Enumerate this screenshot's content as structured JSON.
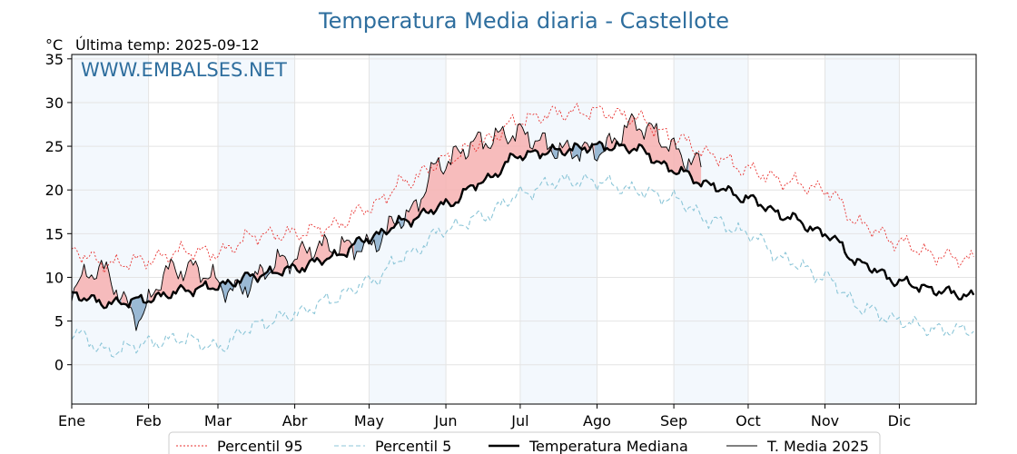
{
  "chart_data": {
    "type": "line",
    "title": "Temperatura Media diaria - Castellote",
    "y_unit": "°C",
    "last_temp_label": "Última temp: 2025-09-12",
    "watermark": "WWW.EMBALSES.NET",
    "ylim": [
      -4.5,
      35.5
    ],
    "yticks": [
      0,
      5,
      10,
      15,
      20,
      25,
      30,
      35
    ],
    "month_labels": [
      "Ene",
      "Feb",
      "Mar",
      "Abr",
      "May",
      "Jun",
      "Jul",
      "Ago",
      "Sep",
      "Oct",
      "Nov",
      "Dic"
    ],
    "month_start_days": [
      1,
      32,
      60,
      91,
      121,
      152,
      182,
      213,
      244,
      274,
      305,
      335
    ],
    "x_range_days": [
      1,
      366
    ],
    "grid": true,
    "legend_position": "bottom",
    "anchor_days": [
      1,
      16,
      32,
      46,
      60,
      75,
      91,
      106,
      121,
      136,
      152,
      167,
      182,
      197,
      213,
      228,
      244,
      259,
      274,
      289,
      305,
      320,
      335,
      350,
      365
    ],
    "series": [
      {
        "name": "Percentil 95",
        "key": "p95",
        "color": "#e8312f",
        "style": "dotted",
        "anchors": [
          13.0,
          11.5,
          12.0,
          13.0,
          12.8,
          14.8,
          15.0,
          15.8,
          18.0,
          21.0,
          23.5,
          25.5,
          28.0,
          28.8,
          29.0,
          28.3,
          26.0,
          24.0,
          22.3,
          21.0,
          20.0,
          16.0,
          14.0,
          12.5,
          12.0
        ],
        "noise_amp": 1.2
      },
      {
        "name": "Percentil 5",
        "key": "p5",
        "color": "#8cc6d8",
        "style": "dashed",
        "anchors": [
          3.8,
          1.5,
          2.5,
          3.0,
          2.0,
          4.5,
          5.8,
          7.5,
          9.5,
          12.5,
          15.5,
          17.0,
          19.5,
          21.0,
          21.0,
          20.0,
          19.0,
          16.5,
          15.0,
          12.0,
          10.0,
          6.5,
          5.0,
          4.0,
          4.0
        ],
        "noise_amp": 1.1
      },
      {
        "name": "Temperatura Mediana",
        "key": "median",
        "color": "#000000",
        "style": "thick",
        "anchors": [
          8.0,
          7.0,
          7.5,
          8.5,
          9.0,
          10.2,
          11.0,
          12.3,
          14.5,
          16.5,
          18.3,
          21.0,
          24.0,
          24.5,
          25.0,
          24.8,
          22.3,
          20.5,
          19.0,
          17.0,
          15.0,
          11.5,
          9.5,
          8.5,
          7.8
        ],
        "noise_amp": 0.8
      },
      {
        "name": "T. Media 2025",
        "key": "actual",
        "color": "#000000",
        "style": "thin",
        "anchors": [
          9.0,
          11.0,
          5.5,
          10.8,
          11.0,
          8.5,
          12.0,
          13.5,
          13.5,
          17.0,
          23.0,
          25.5,
          26.5,
          24.5,
          24.5,
          27.5,
          23.0
        ],
        "anchor_days_override": [
          1,
          12,
          28,
          40,
          50,
          66,
          88,
          100,
          120,
          136,
          150,
          165,
          180,
          200,
          214,
          228,
          255
        ],
        "last_day": 255,
        "noise_amp": 1.8
      }
    ]
  }
}
